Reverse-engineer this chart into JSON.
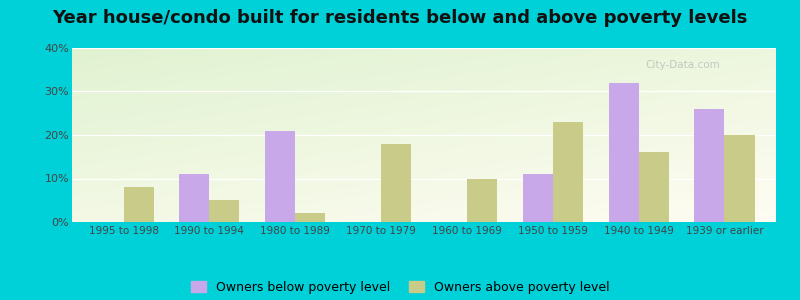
{
  "title": "Year house/condo built for residents below and above poverty levels",
  "categories": [
    "1995 to 1998",
    "1990 to 1994",
    "1980 to 1989",
    "1970 to 1979",
    "1960 to 1969",
    "1950 to 1959",
    "1940 to 1949",
    "1939 or earlier"
  ],
  "below_poverty": [
    0,
    11,
    21,
    0,
    0,
    11,
    32,
    26
  ],
  "above_poverty": [
    8,
    5,
    2,
    18,
    10,
    23,
    16,
    20
  ],
  "below_color": "#c8a8e8",
  "above_color": "#c8cc88",
  "below_label": "Owners below poverty level",
  "above_label": "Owners above poverty level",
  "ylim": [
    0,
    40
  ],
  "yticks": [
    0,
    10,
    20,
    30,
    40
  ],
  "outer_bg": "#00d0d8",
  "title_fontsize": 13,
  "bar_width": 0.35,
  "legend_fontsize": 9,
  "tick_fontsize": 7.5
}
